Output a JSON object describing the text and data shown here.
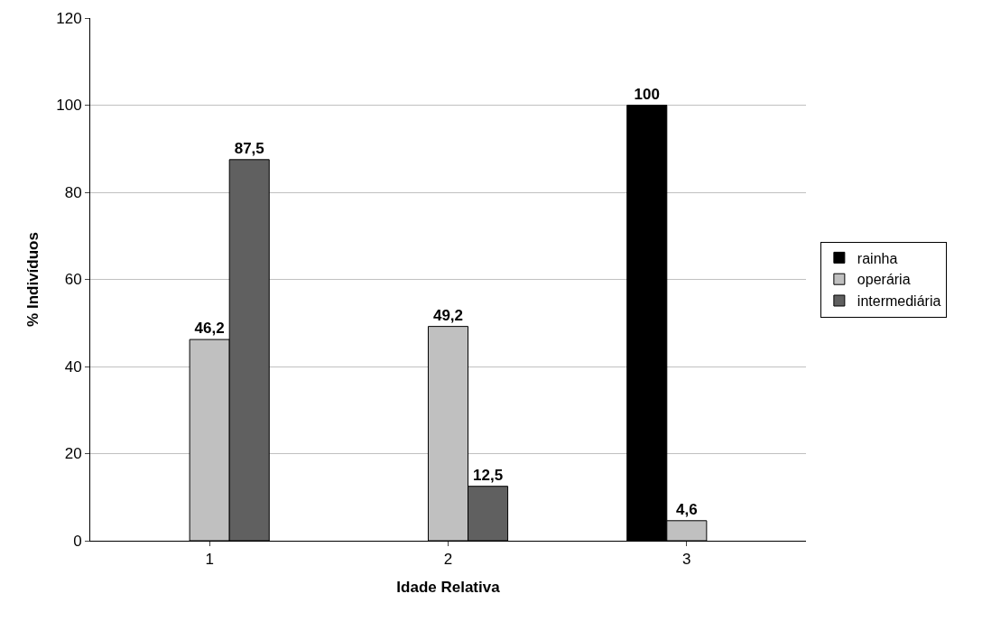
{
  "chart_data": {
    "type": "bar",
    "xlabel": "Idade Relativa",
    "ylabel": "% Indivíduos",
    "categories": [
      "1",
      "2",
      "3"
    ],
    "series": [
      {
        "name": "rainha",
        "color": "#000000",
        "values": [
          null,
          null,
          100
        ],
        "value_labels": [
          null,
          null,
          "100"
        ]
      },
      {
        "name": "operária",
        "color": "#c0c0c0",
        "values": [
          46.2,
          49.2,
          4.6
        ],
        "value_labels": [
          "46,2",
          "49,2",
          "4,6"
        ]
      },
      {
        "name": "intermediária",
        "color": "#606060",
        "values": [
          87.5,
          12.5,
          null
        ],
        "value_labels": [
          "87,5",
          "12,5",
          null
        ]
      }
    ],
    "ylim": [
      0,
      120
    ],
    "yticks": [
      0,
      20,
      40,
      60,
      80,
      100,
      120
    ],
    "grid": "y",
    "legend": "right"
  }
}
